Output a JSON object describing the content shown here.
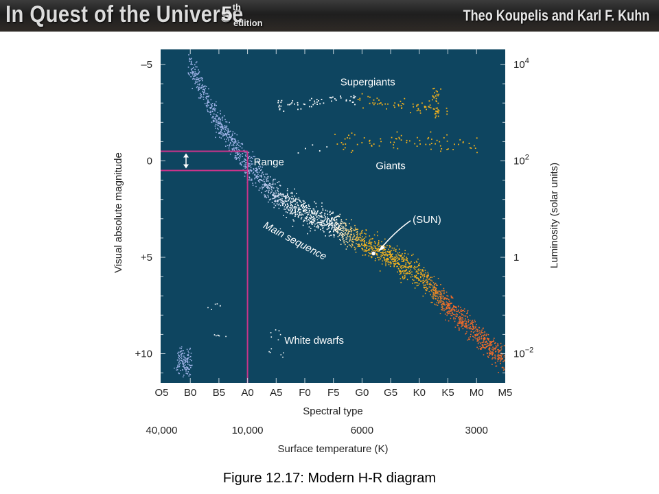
{
  "header": {
    "title": "In Quest of the Universe",
    "edition_number": "5",
    "edition_suffix": "th",
    "edition_word": "edition",
    "authors": "Theo Koupelis and Karl F. Kuhn"
  },
  "caption": "Figure 12.17: Modern H-R diagram",
  "colors": {
    "plot_background": "#0e4560",
    "range_box": "#c8348a",
    "hot_stars": "#9fb3e8",
    "white_stars": "#ffffff",
    "sunlike_stars": "#f5b21c",
    "cool_stars": "#ee6a2a"
  },
  "chart_data": {
    "type": "scatter",
    "title": "",
    "xlabel": "Spectral type",
    "x2label": "Surface temperature (K)",
    "ylabel": "Visual absolute magnitude",
    "y2label": "Luminosity (solar units)",
    "x_ticks": [
      "O5",
      "B0",
      "B5",
      "A0",
      "A5",
      "F0",
      "F5",
      "G0",
      "G5",
      "K0",
      "K5",
      "M0",
      "M5"
    ],
    "temperature_ticks": [
      {
        "label": "40,000",
        "spectral": "O5"
      },
      {
        "label": "10,000",
        "spectral": "A0"
      },
      {
        "label": "6000",
        "spectral": "G0"
      },
      {
        "label": "3000",
        "spectral": "M0"
      }
    ],
    "y_ticks": [
      {
        "label": "–5",
        "value": -5
      },
      {
        "label": "0",
        "value": 0
      },
      {
        "label": "+5",
        "value": 5
      },
      {
        "label": "+10",
        "value": 10
      }
    ],
    "luminosity_ticks": [
      {
        "base": "10",
        "exp": "4",
        "value": -5
      },
      {
        "base": "10",
        "exp": "2",
        "value": 0
      },
      {
        "base": "1",
        "exp": "",
        "value": 5
      },
      {
        "base": "10",
        "exp": "−2",
        "value": 10
      }
    ],
    "ylim": [
      -5.5,
      11.5
    ],
    "y_inverted": true,
    "x_range_index": [
      0,
      12
    ],
    "grid": false,
    "regions": {
      "supergiants": "Supergiants",
      "giants": "Giants",
      "main_sequence": "Main sequence",
      "white_dwarfs": "White dwarfs",
      "sun": "(SUN)",
      "range": "Range"
    },
    "main_sequence_track": [
      {
        "spectral": "B0",
        "magnitude": -5.0
      },
      {
        "spectral": "B5",
        "magnitude": -2.0
      },
      {
        "spectral": "A0",
        "magnitude": 0.2
      },
      {
        "spectral": "A5",
        "magnitude": 1.8
      },
      {
        "spectral": "F0",
        "magnitude": 2.7
      },
      {
        "spectral": "F5",
        "magnitude": 3.3
      },
      {
        "spectral": "G0",
        "magnitude": 4.2
      },
      {
        "spectral": "G5",
        "magnitude": 5.0
      },
      {
        "spectral": "K0",
        "magnitude": 5.9
      },
      {
        "spectral": "K5",
        "magnitude": 7.5
      },
      {
        "spectral": "M0",
        "magnitude": 9.0
      },
      {
        "spectral": "M5",
        "magnitude": 10.4
      }
    ],
    "sun": {
      "spectral": "G2",
      "magnitude": 4.8
    },
    "supergiants_band": {
      "spectral_from": "A5",
      "spectral_to": "K5",
      "magnitude": -3.2
    },
    "giants_band": {
      "spectral_from": "F5",
      "spectral_to": "M0",
      "magnitude": -1.0
    },
    "white_dwarfs": [
      {
        "spectral": "B5",
        "magnitude": 7.5
      },
      {
        "spectral": "B5",
        "magnitude": 9.0
      },
      {
        "spectral": "A5",
        "magnitude": 9.0
      },
      {
        "spectral": "A5",
        "magnitude": 10.0
      }
    ],
    "range_marker": {
      "spectral": "A0",
      "magnitude_from": -0.5,
      "magnitude_to": 0.5
    }
  }
}
